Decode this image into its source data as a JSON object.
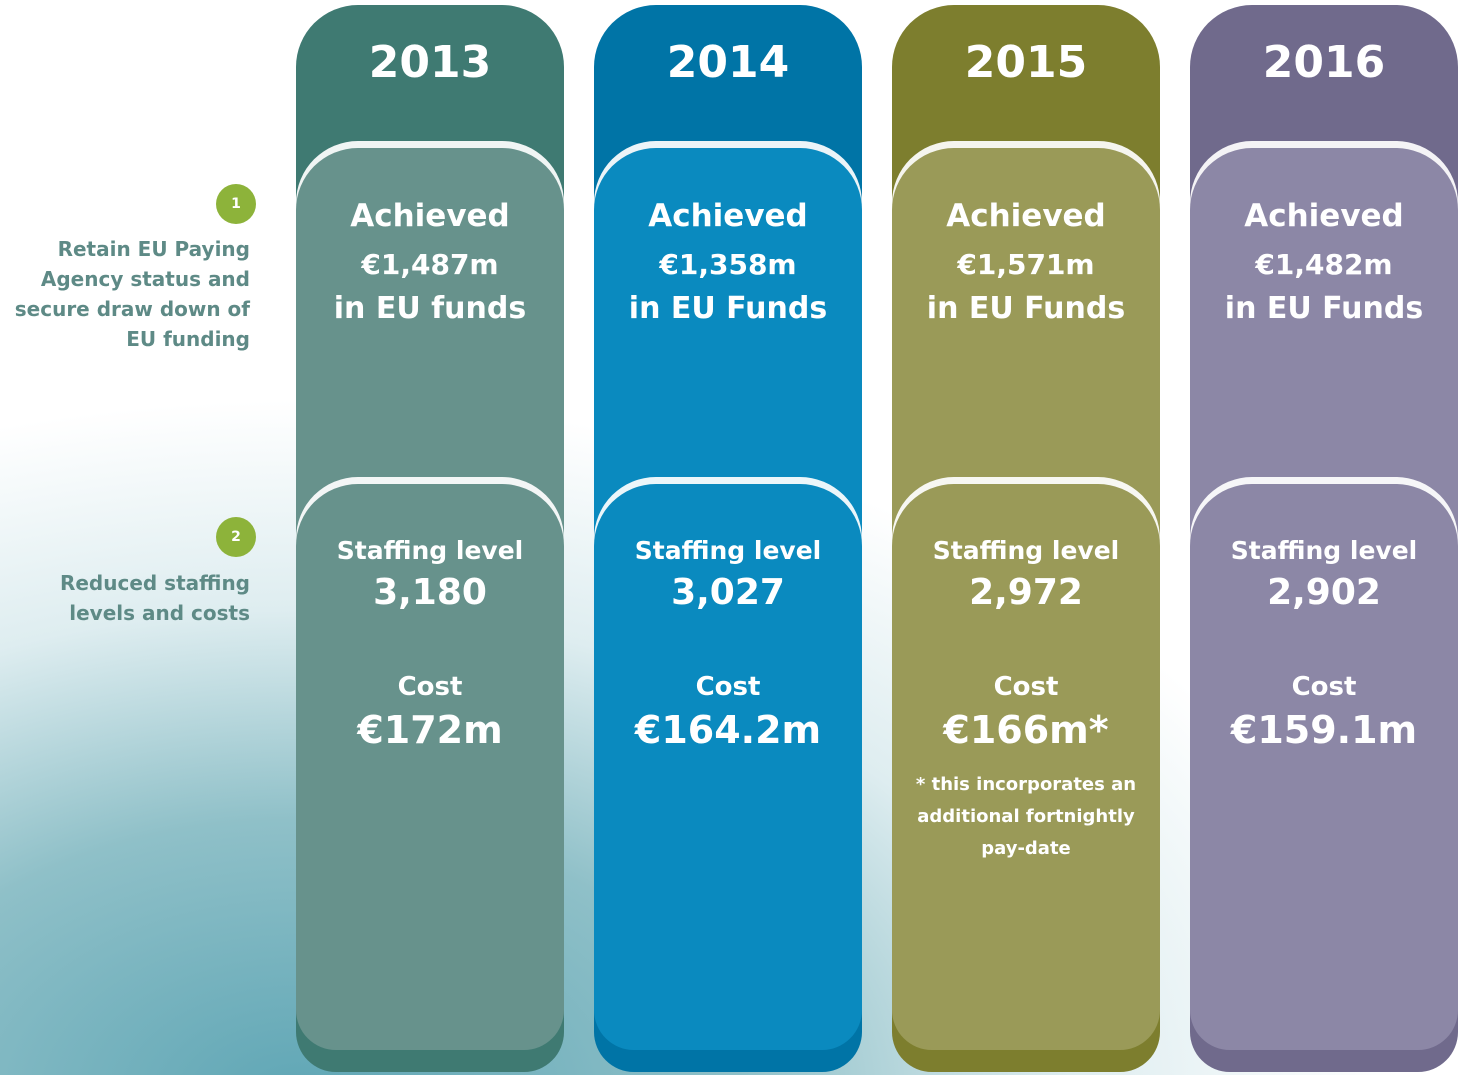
{
  "left_labels": [
    {
      "badge": "1",
      "lines": [
        "Retain EU Paying",
        "Agency status and",
        "secure draw down of",
        "EU funding"
      ]
    },
    {
      "badge": "2",
      "lines": [
        "Reduced staffing",
        "levels and costs"
      ]
    }
  ],
  "columns": [
    {
      "year": "2013",
      "funds": {
        "heading": "Achieved",
        "amount": "€1,487m",
        "note": "in EU funds"
      },
      "staffing": {
        "heading": "Staffing level",
        "value": "3,180",
        "cost_heading": "Cost",
        "cost": "€172m"
      }
    },
    {
      "year": "2014",
      "funds": {
        "heading": "Achieved",
        "amount": "€1,358m",
        "note": "in EU Funds"
      },
      "staffing": {
        "heading": "Staffing level",
        "value": "3,027",
        "cost_heading": "Cost",
        "cost": "€164.2m"
      }
    },
    {
      "year": "2015",
      "funds": {
        "heading": "Achieved",
        "amount": "€1,571m",
        "note": "in EU Funds"
      },
      "staffing": {
        "heading": "Staffing level",
        "value": "2,972",
        "cost_heading": "Cost",
        "cost": "€166m*",
        "footnote": [
          "* this incorporates an",
          "additional fortnightly",
          "pay-date"
        ]
      }
    },
    {
      "year": "2016",
      "funds": {
        "heading": "Achieved",
        "amount": "€1,482m",
        "note": "in EU Funds"
      },
      "staffing": {
        "heading": "Staffing level",
        "value": "2,902",
        "cost_heading": "Cost",
        "cost": "€159.1m"
      }
    }
  ]
}
